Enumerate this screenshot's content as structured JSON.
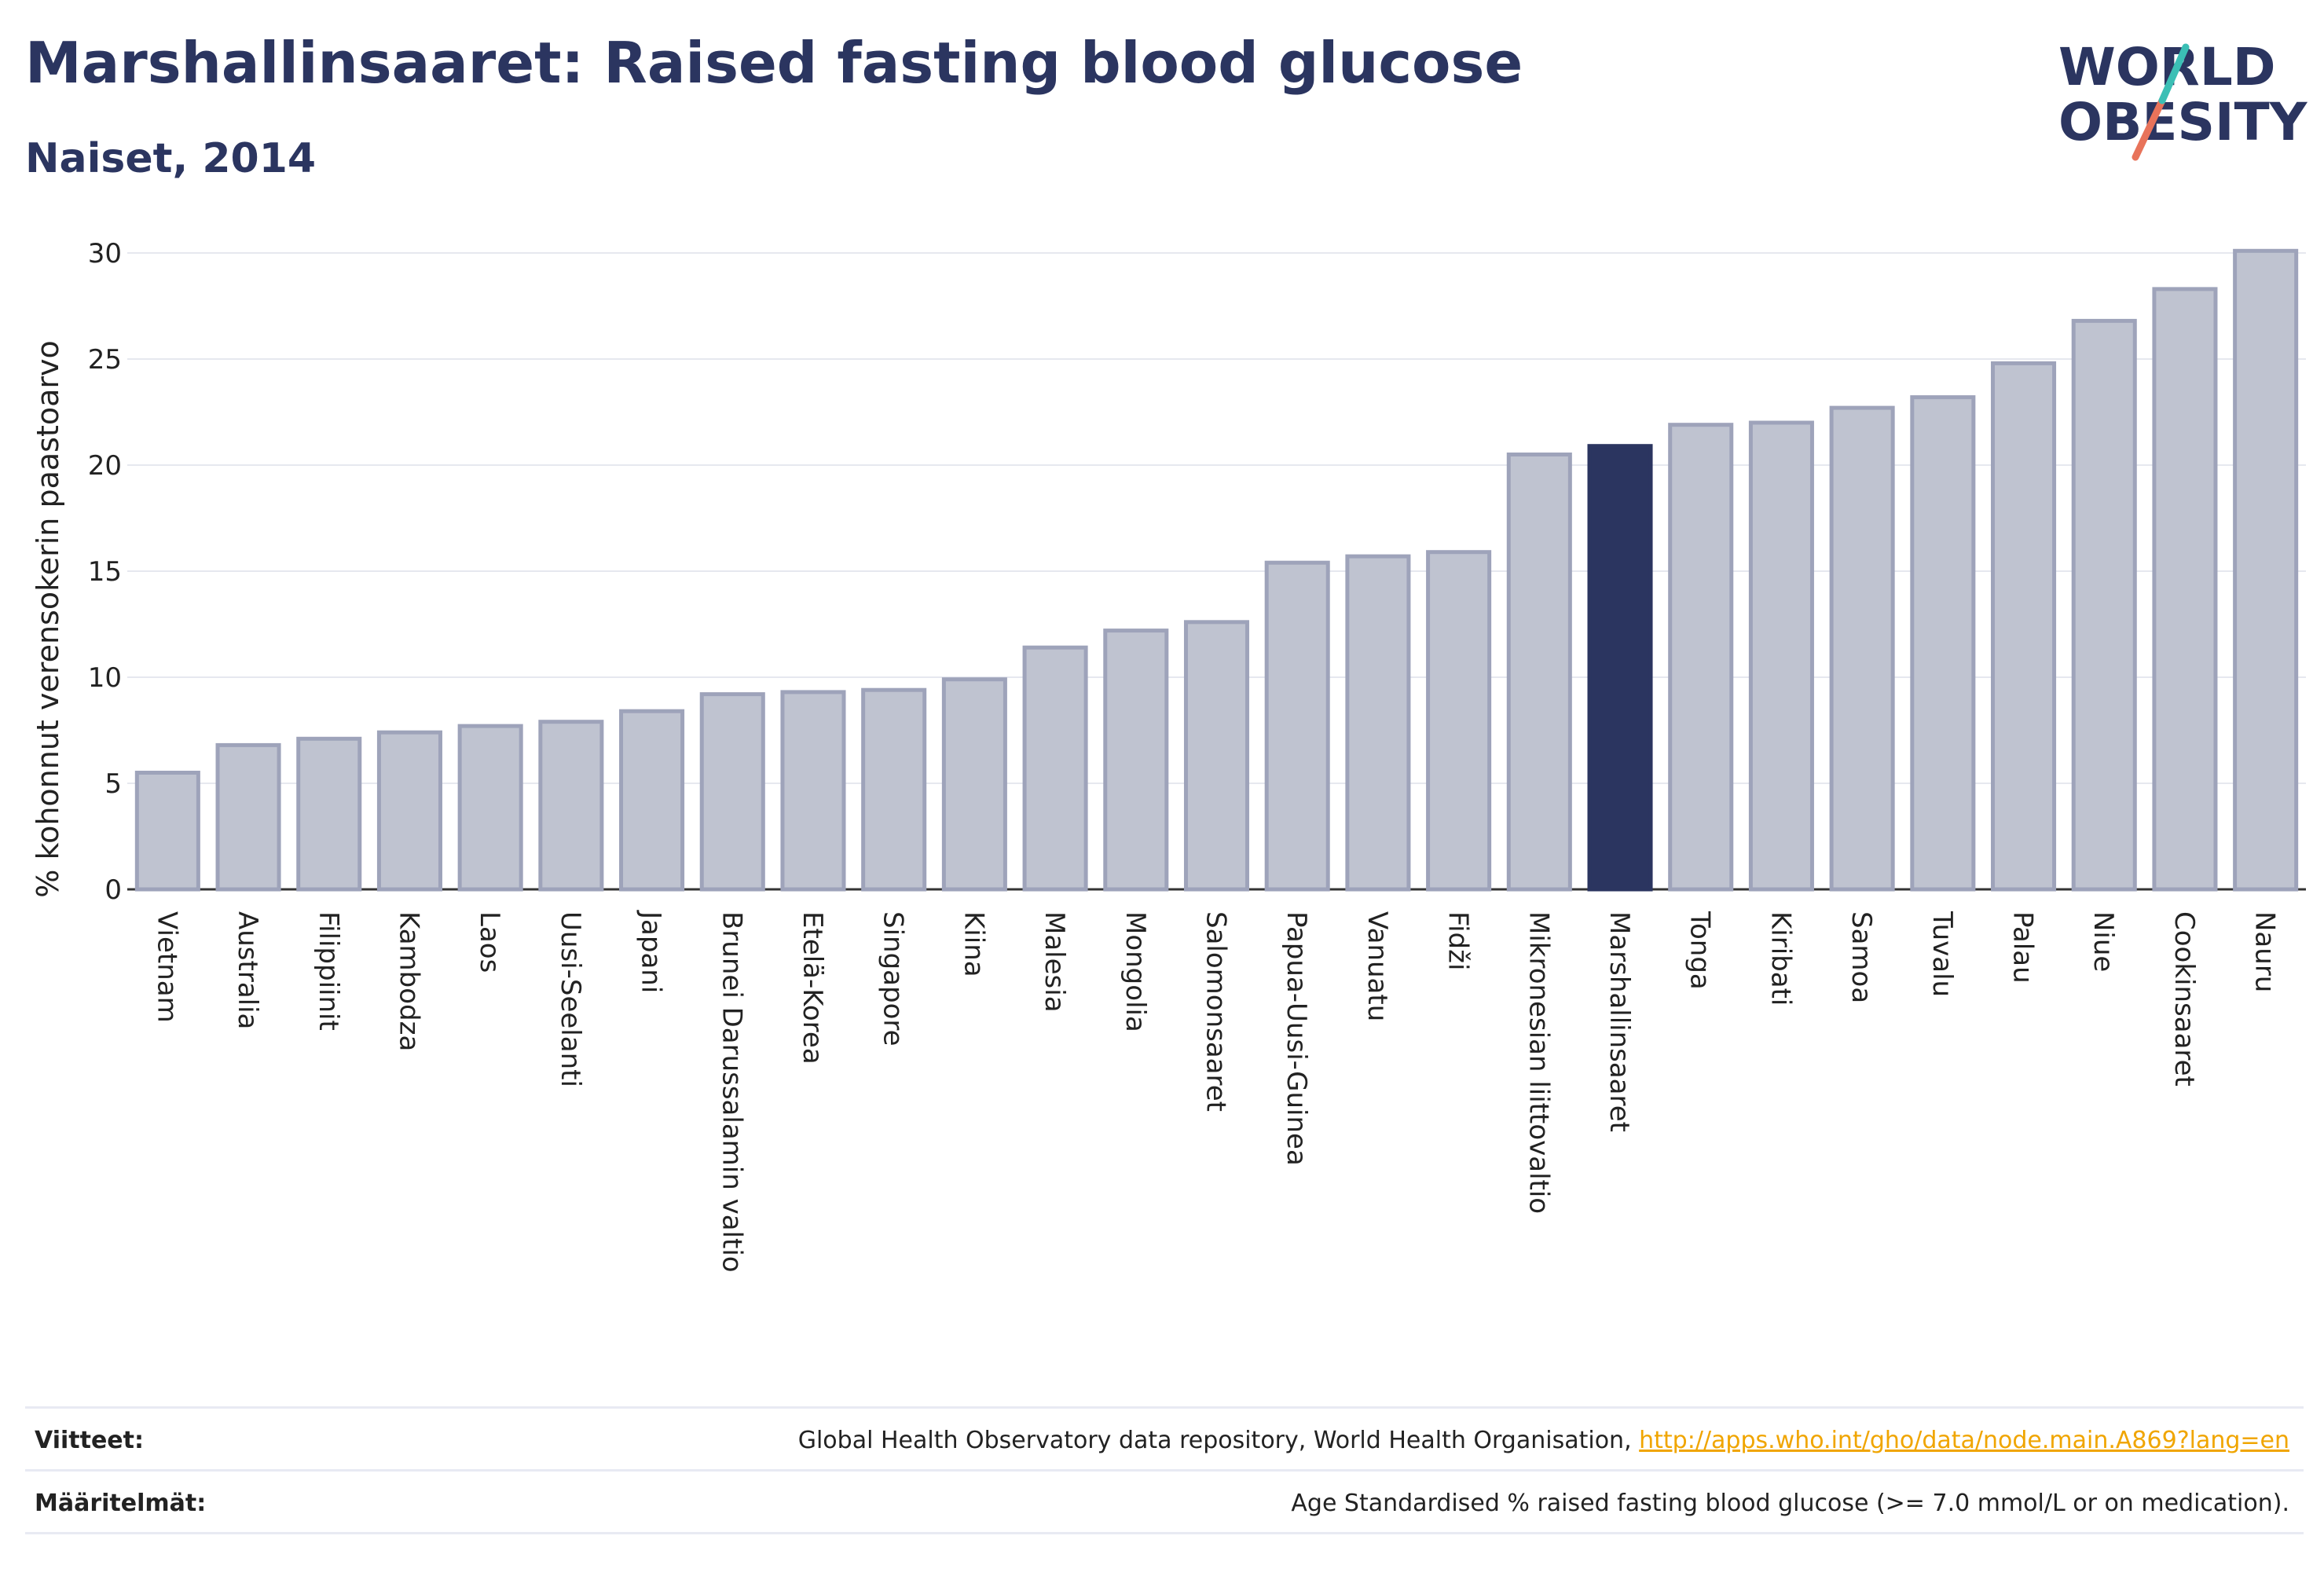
{
  "title": "Marshallinsaaret: Raised fasting blood glucose",
  "subtitle": "Naiset, 2014",
  "logo": {
    "line1": "WORLD",
    "line2": "OBESITY"
  },
  "colors": {
    "bar": "#bfc3d0",
    "bar_border": "#9ea3ba",
    "highlight": "#2b3560",
    "grid": "#e6e8ef",
    "axis": "#333333",
    "title": "#2b3560"
  },
  "chart_data": {
    "type": "bar",
    "title": "Marshallinsaaret: Raised fasting blood glucose",
    "subtitle": "Naiset, 2014",
    "ylabel": "% kohonnut verensokerin paastoarvo",
    "xlabel": "",
    "ylim": [
      0,
      30
    ],
    "yticks": [
      0,
      5,
      10,
      15,
      20,
      25,
      30
    ],
    "grid": true,
    "highlight": "Marshallinsaaret",
    "categories": [
      "Vietnam",
      "Australia",
      "Filippiinit",
      "Kambodza",
      "Laos",
      "Uusi-Seelanti",
      "Japani",
      "Brunei Darussalamin valtio",
      "Etelä-Korea",
      "Singapore",
      "Kiina",
      "Malesia",
      "Mongolia",
      "Salomonsaaret",
      "Papua-Uusi-Guinea",
      "Vanuatu",
      "Fidži",
      "Mikronesian liittovaltio",
      "Marshallinsaaret",
      "Tonga",
      "Kiribati",
      "Samoa",
      "Tuvalu",
      "Palau",
      "Niue",
      "Cookinsaaret",
      "Nauru"
    ],
    "values": [
      5.5,
      6.8,
      7.1,
      7.4,
      7.7,
      7.9,
      8.4,
      9.2,
      9.3,
      9.4,
      9.9,
      11.4,
      12.2,
      12.6,
      15.4,
      15.7,
      15.9,
      20.5,
      20.9,
      21.9,
      22.0,
      22.7,
      23.2,
      24.8,
      26.8,
      28.3,
      30.1
    ]
  },
  "footer": {
    "references_label": "Viitteet:",
    "references_text": "Global Health Observatory data repository, World Health Organisation, ",
    "references_link": "http://apps.who.int/gho/data/node.main.A869?lang=en",
    "definitions_label": "Määritelmät:",
    "definitions_text": "Age Standardised % raised fasting blood glucose (>= 7.0 mmol/L or on medication)."
  }
}
